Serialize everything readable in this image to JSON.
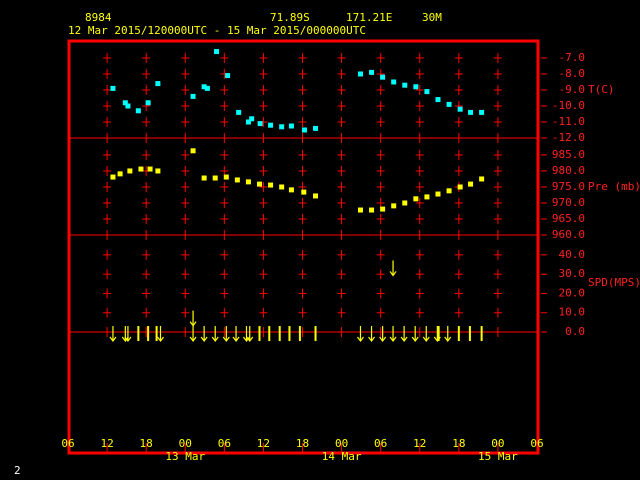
{
  "header": {
    "station": "8984",
    "lat": "71.89S",
    "lon": "171.21E",
    "elev": "30M",
    "period": "12 Mar 2015/120000UTC - 15 Mar 2015/000000UTC",
    "page": "2"
  },
  "chart_data": [
    {
      "type": "scatter",
      "y_label": "T(C)",
      "color": "#00ffff",
      "marker": "square",
      "xlim": [
        6,
        78
      ],
      "xticks": [
        6,
        12,
        18,
        24,
        30,
        36,
        42,
        48,
        54,
        60,
        66,
        72,
        78
      ],
      "ylim": [
        -12,
        -5.94
      ],
      "yticks": [
        {
          "value": -12,
          "label": "-12.0"
        },
        {
          "value": -11,
          "label": "-11.0"
        },
        {
          "value": -10,
          "label": "-10.0"
        },
        {
          "value": -9,
          "label": "-9.0"
        },
        {
          "value": -8,
          "label": "-8.0"
        },
        {
          "value": -7,
          "label": "-7.0"
        }
      ],
      "x": [
        12.9,
        14.8,
        15.2,
        16.8,
        18.3,
        19.8,
        25.2,
        26.9,
        27.4,
        28.8,
        30.5,
        32.2,
        33.7,
        34.2,
        35.5,
        37.1,
        38.8,
        40.3,
        42.3,
        44.0,
        50.9,
        52.6,
        54.3,
        56.0,
        57.7,
        59.4,
        61.1,
        62.8,
        64.5,
        66.2,
        67.8,
        69.5
      ],
      "values": [
        -8.9,
        -9.8,
        -10.0,
        -10.3,
        -9.8,
        -8.6,
        -9.4,
        -8.8,
        -8.9,
        -6.6,
        -8.1,
        -10.4,
        -11.0,
        -10.8,
        -11.1,
        -11.2,
        -11.3,
        -11.25,
        -11.5,
        -11.4,
        -8.0,
        -7.9,
        -8.2,
        -8.5,
        -8.7,
        -8.8,
        -9.1,
        -9.6,
        -9.9,
        -10.2,
        -10.4,
        -10.4
      ]
    },
    {
      "type": "scatter",
      "y_label": "Pre (mb)",
      "color": "#ffff00",
      "marker": "square",
      "xlim": [
        6,
        78
      ],
      "xticks": [
        6,
        12,
        18,
        24,
        30,
        36,
        42,
        48,
        54,
        60,
        66,
        72,
        78
      ],
      "ylim": [
        960,
        990.3
      ],
      "yticks": [
        {
          "value": 960,
          "label": "960.0"
        },
        {
          "value": 965,
          "label": "965.0"
        },
        {
          "value": 970,
          "label": "970.0"
        },
        {
          "value": 975,
          "label": "975.0"
        },
        {
          "value": 980,
          "label": "980.0"
        },
        {
          "value": 985,
          "label": "985.0"
        }
      ],
      "x": [
        12.9,
        14.0,
        15.5,
        17.2,
        18.6,
        19.8,
        25.2,
        26.9,
        28.6,
        30.3,
        32.0,
        33.7,
        35.4,
        37.1,
        38.8,
        40.3,
        42.2,
        44.0,
        50.9,
        52.6,
        54.3,
        56.0,
        57.7,
        59.4,
        61.1,
        62.8,
        64.5,
        66.2,
        67.8,
        69.5
      ],
      "values": [
        978.1,
        979.1,
        980.0,
        980.6,
        980.6,
        980.0,
        986.3,
        977.8,
        977.8,
        978.1,
        977.2,
        976.6,
        975.9,
        975.6,
        975.0,
        974.1,
        973.4,
        972.2,
        967.8,
        967.8,
        968.1,
        969.1,
        970.0,
        971.3,
        971.9,
        972.8,
        973.8,
        975.0,
        975.9,
        977.5
      ]
    },
    {
      "type": "wind",
      "y_label": "SPD(MPS)",
      "color": "#ffff00",
      "zero_line": true,
      "xlim": [
        6,
        78
      ],
      "xticks": [
        {
          "value": 6,
          "label": "06"
        },
        {
          "value": 12,
          "label": "12"
        },
        {
          "value": 18,
          "label": "18"
        },
        {
          "value": 24,
          "label": "00"
        },
        {
          "value": 30,
          "label": "06"
        },
        {
          "value": 36,
          "label": "12"
        },
        {
          "value": 42,
          "label": "18"
        },
        {
          "value": 48,
          "label": "00"
        },
        {
          "value": 54,
          "label": "06"
        },
        {
          "value": 60,
          "label": "12"
        },
        {
          "value": 66,
          "label": "18"
        },
        {
          "value": 72,
          "label": "00"
        },
        {
          "value": 78,
          "label": "06"
        }
      ],
      "date_labels": [
        {
          "value": 24,
          "label": "13 Mar"
        },
        {
          "value": 48,
          "label": "14 Mar"
        },
        {
          "value": 72,
          "label": "15 Mar"
        }
      ],
      "ylim": [
        -62.7,
        50.3
      ],
      "yticks": [
        {
          "value": 0,
          "label": "0.0"
        },
        {
          "value": 10,
          "label": "10.0"
        },
        {
          "value": 20,
          "label": "20.0"
        },
        {
          "value": 30,
          "label": "30.0"
        },
        {
          "value": 40,
          "label": "40.0"
        }
      ],
      "x": [
        12.9,
        14.8,
        15.2,
        16.8,
        18.3,
        19.6,
        20.2,
        25.2,
        25.2,
        26.9,
        28.6,
        30.3,
        31.8,
        33.4,
        33.9,
        35.4,
        36.9,
        38.5,
        40.0,
        41.6,
        44.0,
        50.9,
        52.6,
        54.3,
        55.9,
        55.9,
        57.6,
        59.3,
        61.0,
        62.7,
        62.9,
        64.3,
        66.0,
        67.7,
        69.5
      ],
      "values": [
        0,
        0,
        0,
        0,
        0,
        0,
        0,
        8,
        0,
        0,
        0,
        0,
        0,
        0,
        0,
        0,
        0,
        0,
        0,
        0,
        0,
        0,
        0,
        0,
        34,
        0,
        0,
        0,
        0,
        0,
        0,
        0,
        0,
        0,
        0
      ],
      "markers": [
        "down",
        "down",
        "down",
        "bar",
        "bar",
        "bar",
        "down",
        "down",
        "down",
        "down",
        "down",
        "down",
        "down",
        "down",
        "down",
        "bar",
        "bar",
        "bar",
        "bar",
        "bar",
        "bar",
        "down",
        "down",
        "down",
        "down",
        "down",
        "down",
        "down",
        "down",
        "down",
        "bar",
        "down",
        "bar",
        "bar",
        "bar"
      ]
    }
  ]
}
